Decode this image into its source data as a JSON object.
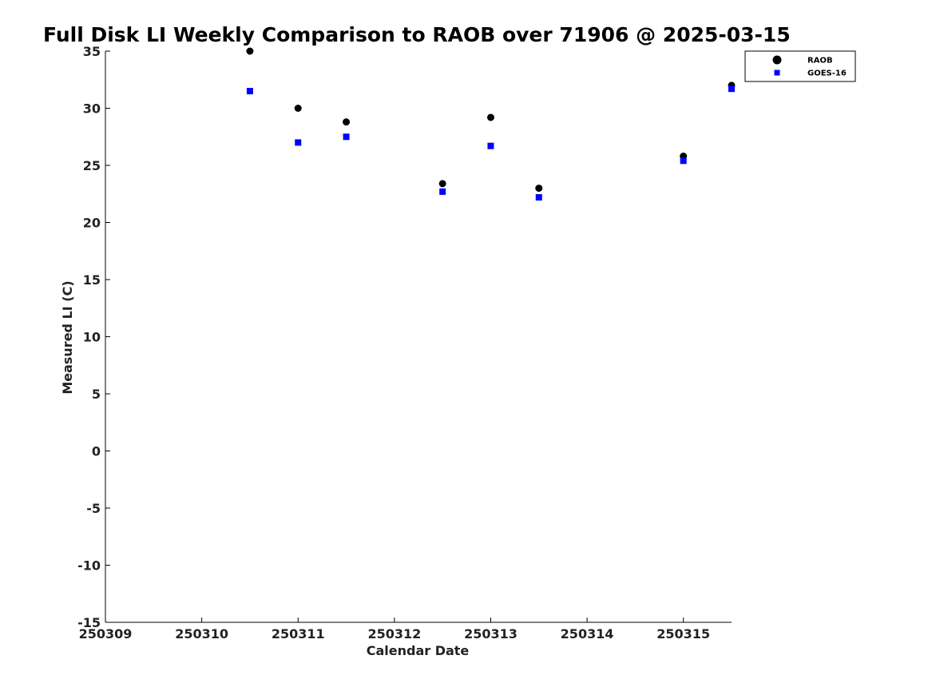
{
  "chart_data": {
    "type": "scatter",
    "title": "Full Disk LI Weekly Comparison to RAOB over 71906 @ 2025-03-15",
    "xlabel": "Calendar Date",
    "ylabel": "Measured LI (C)",
    "xlim": [
      250309,
      250315.5
    ],
    "ylim": [
      -15,
      35
    ],
    "xticks": [
      250309,
      250310,
      250311,
      250312,
      250313,
      250314,
      250315
    ],
    "xtick_labels": [
      "250309",
      "250310",
      "250311",
      "250312",
      "250313",
      "250314",
      "250315"
    ],
    "yticks": [
      -15,
      -10,
      -5,
      0,
      5,
      10,
      15,
      20,
      25,
      30,
      35
    ],
    "ytick_labels": [
      "-15",
      "-10",
      "-5",
      "0",
      "5",
      "10",
      "15",
      "20",
      "25",
      "30",
      "35"
    ],
    "grid": false,
    "legend_position": "top-right",
    "series": [
      {
        "name": "RAOB",
        "marker": "circle",
        "color": "#000000",
        "x": [
          250310.5,
          250311,
          250311.5,
          250312.5,
          250313,
          250313.5,
          250315,
          250315.5
        ],
        "y": [
          35,
          30,
          28.8,
          23.4,
          29.2,
          23,
          25.8,
          32
        ]
      },
      {
        "name": "GOES-16",
        "marker": "square",
        "color": "#0000ff",
        "x": [
          250310.5,
          250311,
          250311.5,
          250312.5,
          250313,
          250313.5,
          250315,
          250315.5
        ],
        "y": [
          31.5,
          27,
          27.5,
          22.7,
          26.7,
          22.2,
          25.4,
          31.7
        ]
      }
    ]
  }
}
